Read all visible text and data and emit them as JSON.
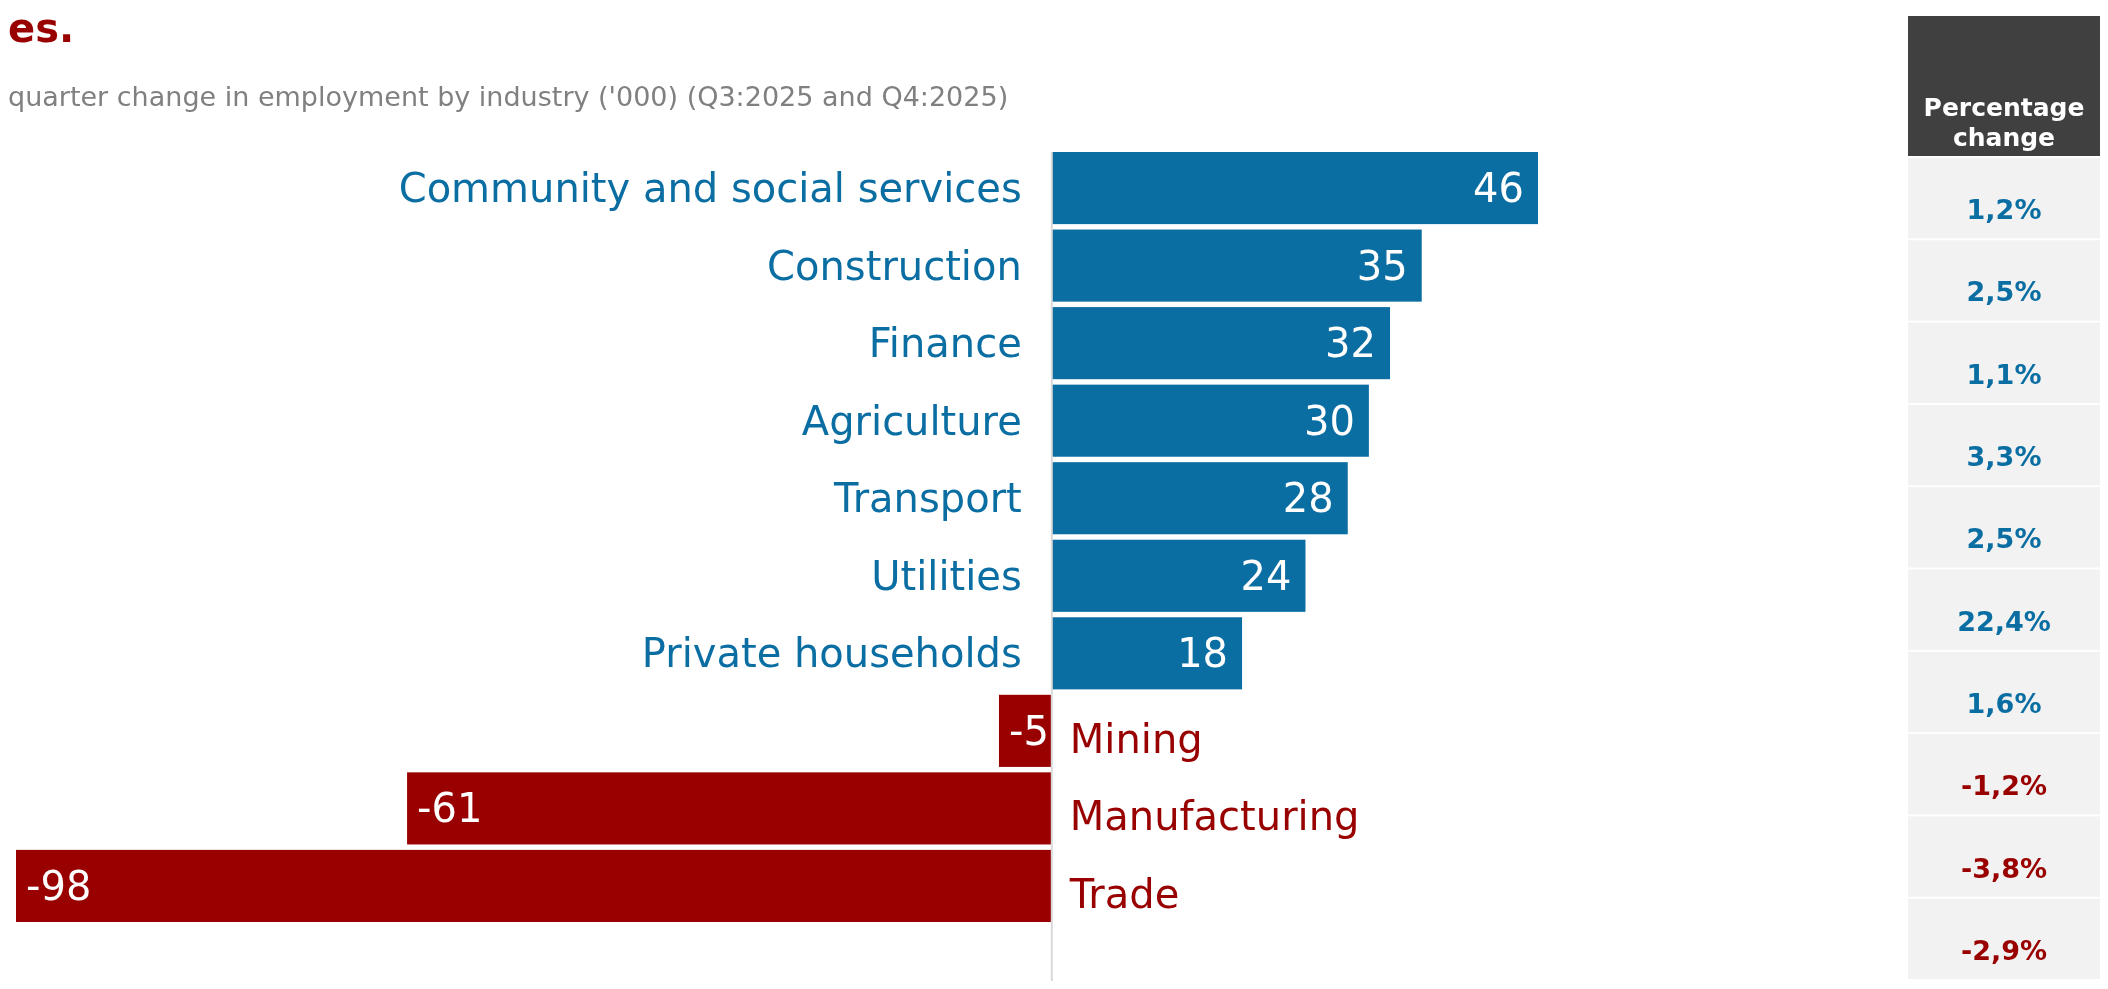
{
  "chart_data": {
    "type": "bar",
    "orientation": "horizontal",
    "title": "es.",
    "subtitle": "quarter change in employment by industry ('000) (Q3:2025 and Q4:2025)",
    "categories": [
      "Community and social services",
      "Construction",
      "Finance",
      "Agriculture",
      "Transport",
      "Utilities",
      "Private households",
      "Mining",
      "Manufacturing",
      "Trade"
    ],
    "values": [
      46,
      35,
      32,
      30,
      28,
      24,
      18,
      -5,
      -61,
      -98
    ],
    "colors": [
      "#0b6ea3",
      "#0b6ea3",
      "#0b6ea3",
      "#0b6ea3",
      "#0b6ea3",
      "#0b6ea3",
      "#0b6ea3",
      "#990000",
      "#990000",
      "#990000"
    ],
    "data_labels": true,
    "annotations": [
      "Percentage change",
      "1,2%",
      "2,5%",
      "1,1%",
      "3,3%",
      "2,5%",
      "22,4%",
      "1,6%",
      "-1,2%",
      "-3,8%",
      "-2,9%"
    ]
  }
}
